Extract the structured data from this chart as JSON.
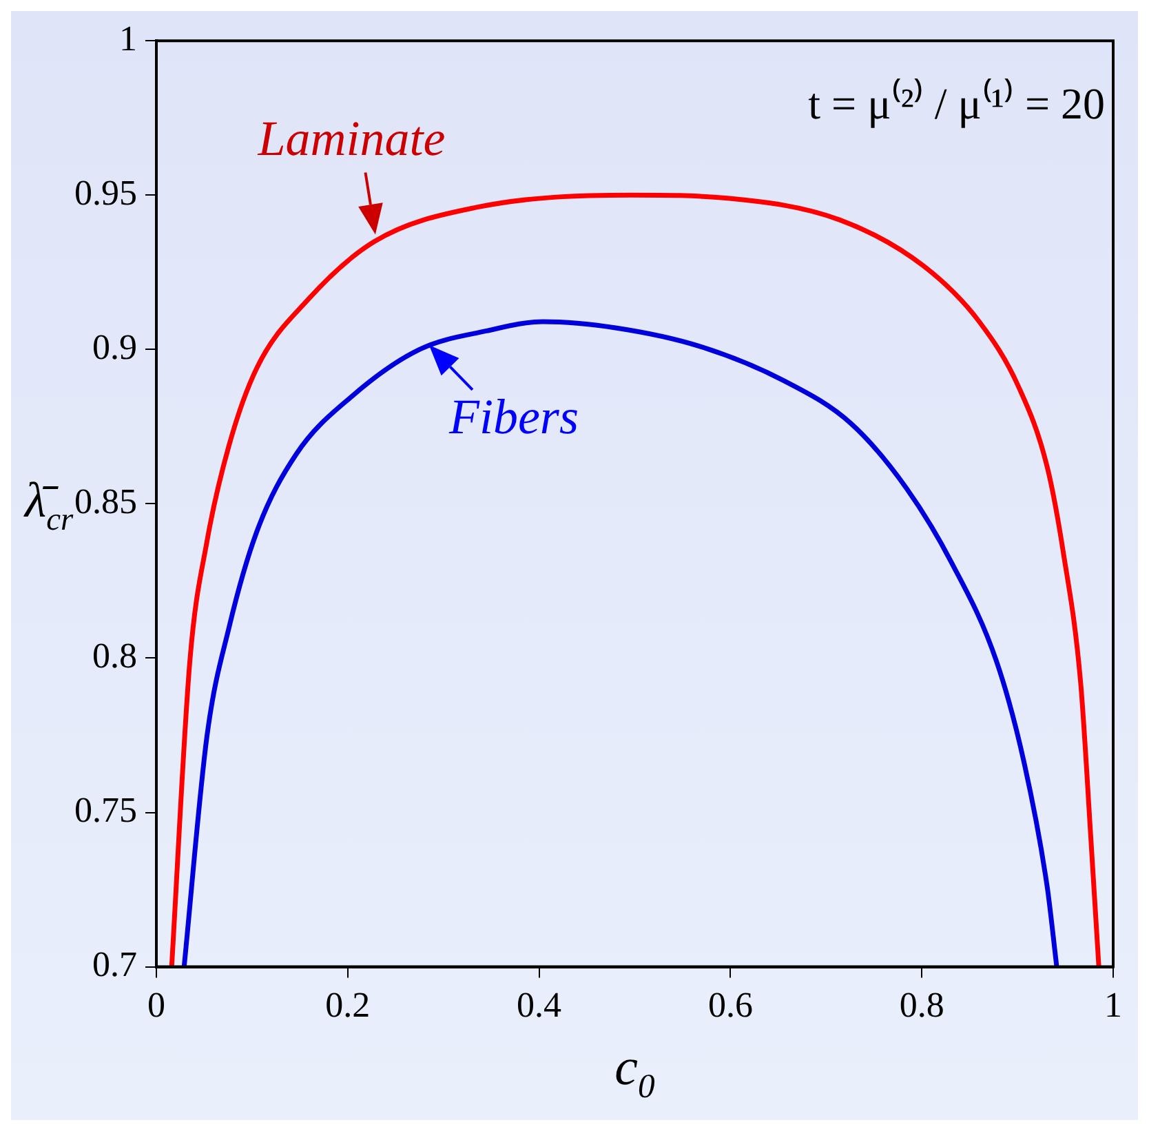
{
  "chart_data": {
    "type": "line",
    "xlabel": "c$_{0}$",
    "ylabel": "λ̄$_{cr}$",
    "xlim": [
      0,
      1
    ],
    "ylim": [
      0.7,
      1
    ],
    "xticks": [
      0,
      0.2,
      0.4,
      0.6,
      0.8,
      1
    ],
    "yticks": [
      0.7,
      0.75,
      0.8,
      0.85,
      0.9,
      0.95,
      1
    ],
    "grid": false,
    "legend": false,
    "marker": "none",
    "line_style": "solid",
    "series": [
      {
        "color": "#ff0000",
        "x": [
          0.016,
          0.035,
          0.053,
          0.076,
          0.105,
          0.158,
          0.228,
          0.334,
          0.497,
          0.597,
          0.714,
          0.802,
          0.86,
          0.901,
          0.931,
          0.948,
          0.966,
          0.977,
          0.985
        ],
        "values": [
          0.7,
          0.799,
          0.838,
          0.869,
          0.894,
          0.916,
          0.935,
          0.946,
          0.95,
          0.949,
          0.942,
          0.927,
          0.909,
          0.888,
          0.862,
          0.834,
          0.792,
          0.74,
          0.7
        ]
      },
      {
        "color": "#0000dd",
        "x": [
          0.029,
          0.053,
          0.076,
          0.105,
          0.146,
          0.205,
          0.275,
          0.345,
          0.404,
          0.48,
          0.568,
          0.655,
          0.726,
          0.784,
          0.831,
          0.878,
          0.907,
          0.931,
          0.941
        ],
        "values": [
          0.7,
          0.775,
          0.81,
          0.841,
          0.866,
          0.885,
          0.9,
          0.906,
          0.909,
          0.907,
          0.901,
          0.89,
          0.876,
          0.855,
          0.831,
          0.799,
          0.766,
          0.726,
          0.7
        ]
      }
    ],
    "annotations": [
      {
        "text": "Laminate",
        "x": 0.23,
        "y": 0.935
      },
      {
        "text": "Fibers",
        "x": 0.28,
        "y": 0.903
      },
      "t = μ⁽²⁾ / μ⁽¹⁾ = 20"
    ]
  }
}
